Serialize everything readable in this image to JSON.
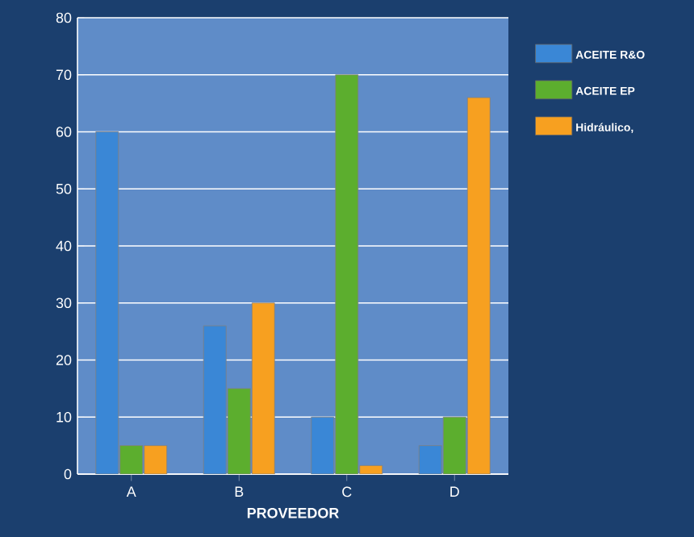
{
  "chart_data": {
    "type": "bar",
    "xlabel": "PROVEEDOR",
    "categories": [
      "A",
      "B",
      "C",
      "D"
    ],
    "series": [
      {
        "name": "ACEITE R&O",
        "color": "#3a87d6",
        "values": [
          60,
          26,
          10,
          5
        ]
      },
      {
        "name": "ACEITE EP",
        "color": "#5cae2e",
        "values": [
          5,
          15,
          70,
          10
        ]
      },
      {
        "name": "Hidráulico,",
        "color": "#f7a020",
        "values": [
          5,
          30,
          1.5,
          66
        ]
      }
    ],
    "ylim": [
      0,
      80
    ],
    "yticks": [
      0,
      10,
      20,
      30,
      40,
      50,
      60,
      70,
      80
    ],
    "grid": "y",
    "legend": "right"
  }
}
